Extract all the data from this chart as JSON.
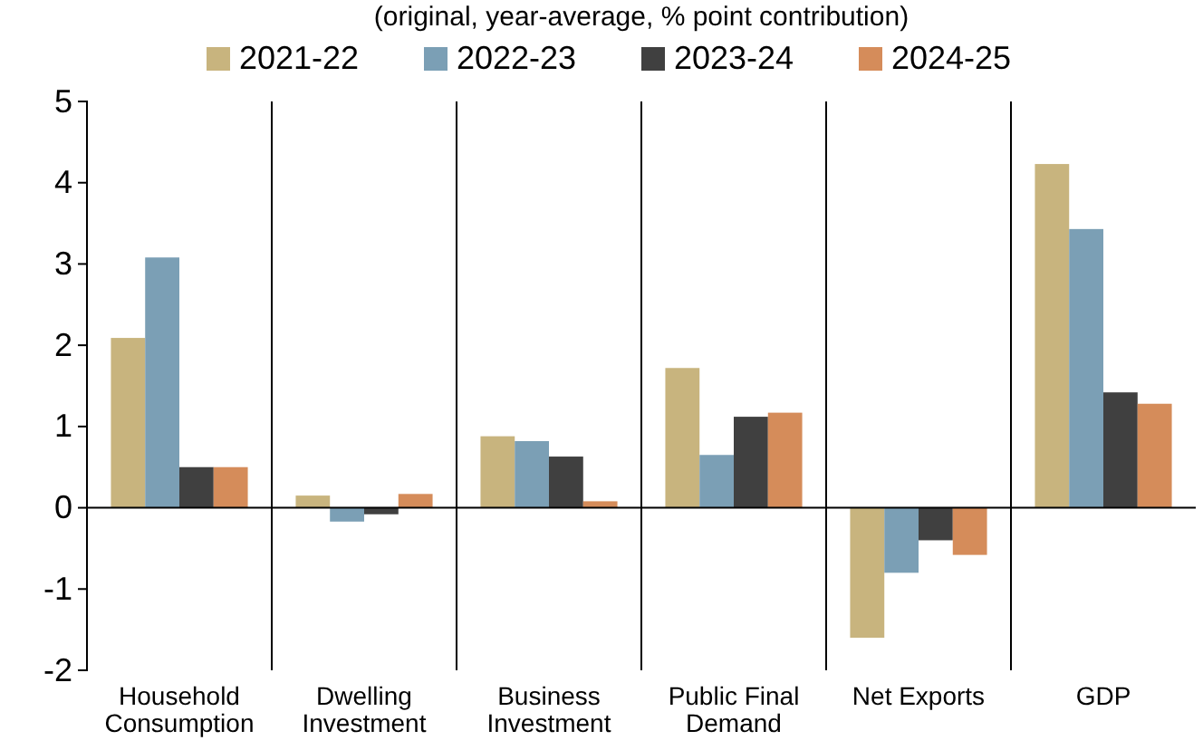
{
  "chart_data": {
    "type": "bar",
    "title": "(original, year-average, % point contribution)",
    "categories": [
      "Household Consumption",
      "Dwelling Investment",
      "Business Investment",
      "Public Final Demand",
      "Net Exports",
      "GDP"
    ],
    "series": [
      {
        "name": "2021-22",
        "color": "#c8b47e",
        "values": [
          2.09,
          0.15,
          0.88,
          1.72,
          -1.6,
          4.23
        ]
      },
      {
        "name": "2022-23",
        "color": "#7b9fb5",
        "values": [
          3.08,
          -0.17,
          0.82,
          0.65,
          -0.8,
          3.43
        ]
      },
      {
        "name": "2023-24",
        "color": "#404040",
        "values": [
          0.5,
          -0.08,
          0.63,
          1.12,
          -0.4,
          1.42
        ]
      },
      {
        "name": "2024-25",
        "color": "#d58c5a",
        "values": [
          0.5,
          0.17,
          0.08,
          1.17,
          -0.58,
          1.28
        ]
      }
    ],
    "ylim": [
      -2,
      5
    ],
    "yticks": [
      -2,
      -1,
      0,
      1,
      2,
      3,
      4,
      5
    ],
    "legend": "top"
  }
}
